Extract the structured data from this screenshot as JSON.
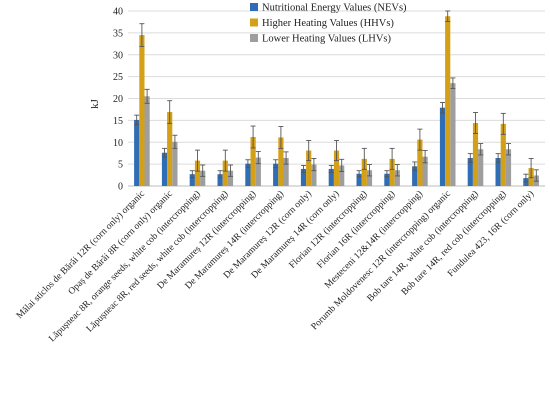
{
  "chart_data": {
    "type": "bar",
    "title": "",
    "xlabel": "",
    "ylabel": "kJ",
    "ylim": [
      0,
      40
    ],
    "yticks": [
      0,
      5,
      10,
      15,
      20,
      25,
      30,
      35,
      40
    ],
    "grid": true,
    "legend_position": "top-right",
    "categories": [
      "Mălai sticlos de Bărăi 12R (corn only)  organic",
      "Opaș de Bărăi 8R (corn only)  organic",
      "Lăpușneac 8R, orange seeds, white cob (intercropping)",
      "Lăpușneac 8R, red seeds, white cob (intercropping)",
      "De Maramureș 12R (intercropping)",
      "De Maramureș 14R (intercropping)",
      "De Maramureș 12R (corn only)",
      "De Maramureș 14R (corn only)",
      "Florian 12R (intercropping)",
      "Florian 16R (intercropping)",
      "Mesteceni 12&14R (intercropping)",
      "Porumb Moldovenesc 12R (intercropping)  organic",
      "Bob tare 14R, white cob (intercropping)",
      "Bob tare 14R, red cob (intercropping)",
      "Fundulea 423, 16R (corn only)"
    ],
    "series": [
      {
        "name": "Nutritional Energy Values (NEVs)",
        "color": "#2f6db5",
        "values": [
          15.1,
          7.6,
          2.7,
          2.7,
          5.1,
          5.1,
          3.9,
          3.9,
          2.8,
          2.8,
          4.5,
          17.9,
          6.4,
          6.4,
          1.8
        ],
        "errors": [
          1.1,
          1.0,
          0.8,
          0.8,
          0.9,
          0.9,
          0.8,
          0.8,
          0.7,
          0.7,
          1.0,
          1.2,
          1.0,
          1.0,
          0.9
        ]
      },
      {
        "name": "Higher Heating Values  (HHVs)",
        "color": "#d4a017",
        "values": [
          34.5,
          16.9,
          5.8,
          5.8,
          11.2,
          11.1,
          8.1,
          8.1,
          6.2,
          6.2,
          10.6,
          38.8,
          14.4,
          14.2,
          4.1
        ],
        "errors": [
          2.6,
          2.6,
          2.4,
          2.4,
          2.5,
          2.5,
          2.3,
          2.3,
          2.4,
          2.4,
          2.4,
          1.2,
          2.4,
          2.4,
          2.2
        ]
      },
      {
        "name": "Lower Heating Values (LHVs)",
        "color": "#9e9e9e",
        "values": [
          20.5,
          10.1,
          3.5,
          3.5,
          6.5,
          6.4,
          4.9,
          4.7,
          3.6,
          3.6,
          6.7,
          23.5,
          8.4,
          8.4,
          2.4
        ],
        "errors": [
          1.6,
          1.5,
          1.3,
          1.3,
          1.4,
          1.4,
          1.4,
          1.4,
          1.3,
          1.3,
          1.4,
          1.2,
          1.3,
          1.3,
          1.3
        ]
      }
    ]
  }
}
